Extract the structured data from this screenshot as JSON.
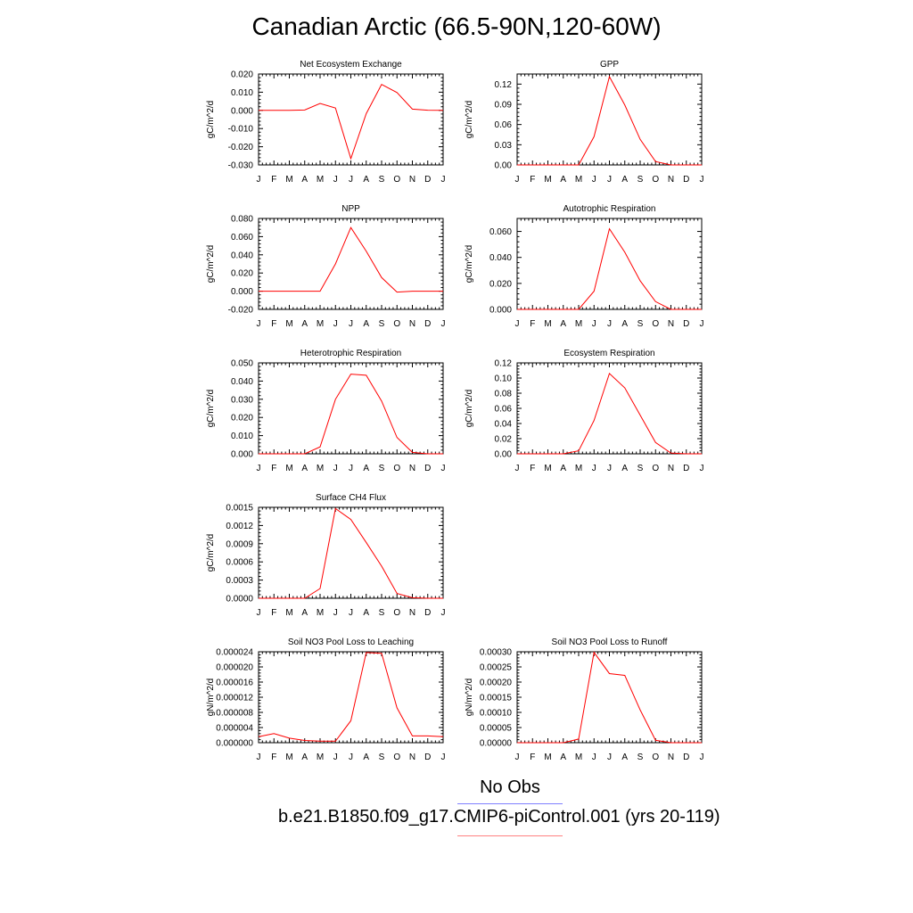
{
  "title": "Canadian Arctic (66.5-90N,120-60W)",
  "months": [
    "J",
    "F",
    "M",
    "A",
    "M",
    "J",
    "J",
    "A",
    "S",
    "O",
    "N",
    "D",
    "J"
  ],
  "legend": {
    "obs_label": "No Obs",
    "obs_color": "#8080ff",
    "model_label": "b.e21.B1850.f09_g17.CMIP6-piControl.001 (yrs 20-119)",
    "model_color": "#ff8080"
  },
  "line_color": "#ff0000",
  "chart_data": [
    {
      "type": "line",
      "title": "Net Ecosystem Exchange",
      "ylabel": "gC/m^2/d",
      "ylim": [
        -0.03,
        0.02
      ],
      "yticks": [
        -0.03,
        -0.02,
        -0.01,
        0.0,
        0.01,
        0.02
      ],
      "ytick_labels": [
        "-0.030",
        "-0.020",
        "-0.010",
        "0.000",
        "0.010",
        "0.020"
      ],
      "x": [
        "J",
        "F",
        "M",
        "A",
        "M",
        "J",
        "J",
        "A",
        "S",
        "O",
        "N",
        "D",
        "J"
      ],
      "values": [
        0.0,
        0.0,
        0.0,
        0.0002,
        0.0038,
        0.0013,
        -0.0265,
        -0.0018,
        0.0143,
        0.0098,
        0.0007,
        0.0001,
        0.0
      ]
    },
    {
      "type": "line",
      "title": "GPP",
      "ylabel": "gC/m^2/d",
      "ylim": [
        0,
        0.135
      ],
      "yticks": [
        0.0,
        0.03,
        0.06,
        0.09,
        0.12
      ],
      "ytick_labels": [
        "0.00",
        "0.03",
        "0.06",
        "0.09",
        "0.12"
      ],
      "x": [
        "J",
        "F",
        "M",
        "A",
        "M",
        "J",
        "J",
        "A",
        "S",
        "O",
        "N",
        "D",
        "J"
      ],
      "values": [
        0.0,
        0.0,
        0.0,
        0.0,
        0.0,
        0.042,
        0.131,
        0.089,
        0.038,
        0.005,
        0.0,
        0.0,
        0.0
      ]
    },
    {
      "type": "line",
      "title": "NPP",
      "ylabel": "gC/m^2/d",
      "ylim": [
        -0.02,
        0.08
      ],
      "yticks": [
        -0.02,
        0.0,
        0.02,
        0.04,
        0.06,
        0.08
      ],
      "ytick_labels": [
        "-0.020",
        "0.000",
        "0.020",
        "0.040",
        "0.060",
        "0.080"
      ],
      "x": [
        "J",
        "F",
        "M",
        "A",
        "M",
        "J",
        "J",
        "A",
        "S",
        "O",
        "N",
        "D",
        "J"
      ],
      "values": [
        0.0,
        0.0,
        0.0,
        0.0,
        0.0,
        0.03,
        0.07,
        0.044,
        0.015,
        -0.001,
        0.0,
        0.0,
        0.0
      ]
    },
    {
      "type": "line",
      "title": "Autotrophic Respiration",
      "ylabel": "gC/m^2/d",
      "ylim": [
        0,
        0.07
      ],
      "yticks": [
        0.0,
        0.02,
        0.04,
        0.06
      ],
      "ytick_labels": [
        "0.000",
        "0.020",
        "0.040",
        "0.060"
      ],
      "x": [
        "J",
        "F",
        "M",
        "A",
        "M",
        "J",
        "J",
        "A",
        "S",
        "O",
        "N",
        "D",
        "J"
      ],
      "values": [
        0.0,
        0.0,
        0.0,
        0.0,
        0.0,
        0.014,
        0.062,
        0.044,
        0.022,
        0.006,
        0.0,
        0.0,
        0.0
      ]
    },
    {
      "type": "line",
      "title": "Heterotrophic Respiration",
      "ylabel": "gC/m^2/d",
      "ylim": [
        0,
        0.05
      ],
      "yticks": [
        0.0,
        0.01,
        0.02,
        0.03,
        0.04,
        0.05
      ],
      "ytick_labels": [
        "0.000",
        "0.010",
        "0.020",
        "0.030",
        "0.040",
        "0.050"
      ],
      "x": [
        "J",
        "F",
        "M",
        "A",
        "M",
        "J",
        "J",
        "A",
        "S",
        "O",
        "N",
        "D",
        "J"
      ],
      "values": [
        0.0,
        0.0,
        0.0,
        0.0,
        0.0038,
        0.03,
        0.0438,
        0.0432,
        0.029,
        0.009,
        0.0008,
        0.0,
        0.0
      ]
    },
    {
      "type": "line",
      "title": "Ecosystem Respiration",
      "ylabel": "gC/m^2/d",
      "ylim": [
        0,
        0.12
      ],
      "yticks": [
        0.0,
        0.02,
        0.04,
        0.06,
        0.08,
        0.1,
        0.12
      ],
      "ytick_labels": [
        "0.00",
        "0.02",
        "0.04",
        "0.06",
        "0.08",
        "0.10",
        "0.12"
      ],
      "x": [
        "J",
        "F",
        "M",
        "A",
        "M",
        "J",
        "J",
        "A",
        "S",
        "O",
        "N",
        "D",
        "J"
      ],
      "values": [
        0.0,
        0.0,
        0.0,
        0.0,
        0.004,
        0.044,
        0.106,
        0.087,
        0.051,
        0.015,
        0.001,
        0.0,
        0.0
      ]
    },
    {
      "type": "line",
      "title": "Surface CH4 Flux",
      "ylabel": "gC/m^2/d",
      "ylim": [
        0,
        0.0015
      ],
      "yticks": [
        0.0,
        0.0003,
        0.0006,
        0.0009,
        0.0012,
        0.0015
      ],
      "ytick_labels": [
        "0.0000",
        "0.0003",
        "0.0006",
        "0.0009",
        "0.0012",
        "0.0015"
      ],
      "x": [
        "J",
        "F",
        "M",
        "A",
        "M",
        "J",
        "J",
        "A",
        "S",
        "O",
        "N",
        "D",
        "J"
      ],
      "values": [
        0.0,
        0.0,
        0.0,
        0.0,
        0.00016,
        0.00148,
        0.0013,
        0.00092,
        0.00053,
        8e-05,
        1e-05,
        0.0,
        0.0
      ]
    },
    {
      "type": "line",
      "title": "Soil NO3 Pool Loss to Leaching",
      "ylabel": "gN/m^2/d",
      "ylim": [
        0,
        2.4e-05
      ],
      "yticks": [
        0.0,
        4e-06,
        8e-06,
        1.2e-05,
        1.6e-05,
        2e-05,
        2.4e-05
      ],
      "ytick_labels": [
        "0.000000",
        "0.000004",
        "0.000008",
        "0.000012",
        "0.000016",
        "0.000020",
        "0.000024"
      ],
      "x": [
        "J",
        "F",
        "M",
        "A",
        "M",
        "J",
        "J",
        "A",
        "S",
        "O",
        "N",
        "D",
        "J"
      ],
      "values": [
        1.6e-06,
        2.4e-06,
        1.2e-06,
        6e-07,
        4e-07,
        4e-07,
        5.8e-06,
        2.38e-05,
        2.36e-05,
        9.2e-06,
        1.8e-06,
        1.8e-06,
        1.6e-06
      ]
    },
    {
      "type": "line",
      "title": "Soil NO3 Pool Loss to Runoff",
      "ylabel": "gN/m^2/d",
      "ylim": [
        0,
        0.0003
      ],
      "yticks": [
        0.0,
        5e-05,
        0.0001,
        0.00015,
        0.0002,
        0.00025,
        0.0003
      ],
      "ytick_labels": [
        "0.00000",
        "0.00005",
        "0.00010",
        "0.00015",
        "0.00020",
        "0.00025",
        "0.00030"
      ],
      "x": [
        "J",
        "F",
        "M",
        "A",
        "M",
        "J",
        "J",
        "A",
        "S",
        "O",
        "N",
        "D",
        "J"
      ],
      "values": [
        0.0,
        0.0,
        0.0,
        0.0,
        1.2e-05,
        0.000298,
        0.000228,
        0.000222,
        0.000108,
        8e-06,
        0.0,
        0.0,
        0.0
      ]
    }
  ]
}
